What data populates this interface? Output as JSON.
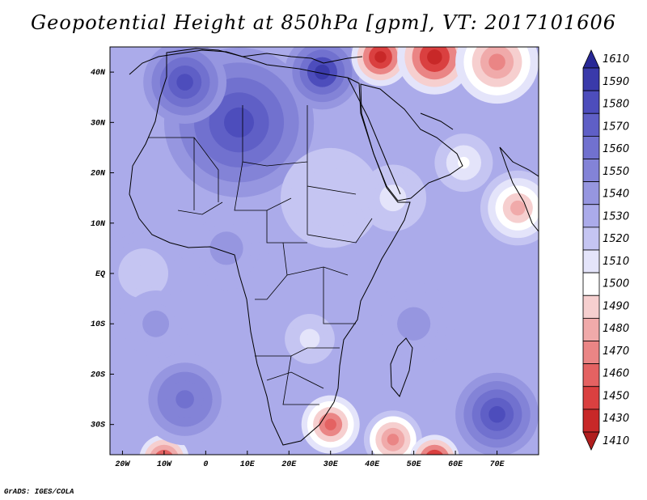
{
  "title": "Geopotential Height at 850hPa [gpm], VT: 2017101606",
  "credit": "GrADS: IGES/COLA",
  "map": {
    "lon_range": [
      -23,
      80
    ],
    "lat_range": [
      -36,
      45
    ],
    "lon_ticks": [
      {
        "lon": -20,
        "label": "20W"
      },
      {
        "lon": -10,
        "label": "10W"
      },
      {
        "lon": 0,
        "label": "0"
      },
      {
        "lon": 10,
        "label": "10E"
      },
      {
        "lon": 20,
        "label": "20E"
      },
      {
        "lon": 30,
        "label": "30E"
      },
      {
        "lon": 40,
        "label": "40E"
      },
      {
        "lon": 50,
        "label": "50E"
      },
      {
        "lon": 60,
        "label": "60E"
      },
      {
        "lon": 70,
        "label": "70E"
      }
    ],
    "lat_ticks": [
      {
        "lat": 40,
        "label": "40N"
      },
      {
        "lat": 30,
        "label": "30N"
      },
      {
        "lat": 20,
        "label": "20N"
      },
      {
        "lat": 10,
        "label": "10N"
      },
      {
        "lat": 0,
        "label": "EQ"
      },
      {
        "lat": -10,
        "label": "10S"
      },
      {
        "lat": -20,
        "label": "20S"
      },
      {
        "lat": -30,
        "label": "30S"
      }
    ],
    "field": {
      "background_value": 1532,
      "features": [
        {
          "lon": 8,
          "lat": 30,
          "value": 1585,
          "r": 18
        },
        {
          "lon": 28,
          "lat": 40,
          "value": 1592,
          "r": 9
        },
        {
          "lon": -5,
          "lat": 38,
          "value": 1582,
          "r": 10
        },
        {
          "lon": 42,
          "lat": 43,
          "value": 1435,
          "r": 7
        },
        {
          "lon": 55,
          "lat": 43,
          "value": 1430,
          "r": 9
        },
        {
          "lon": 70,
          "lat": 42,
          "value": 1470,
          "r": 10
        },
        {
          "lon": 75,
          "lat": 13,
          "value": 1480,
          "r": 9
        },
        {
          "lon": 62,
          "lat": 22,
          "value": 1505,
          "r": 7
        },
        {
          "lon": 30,
          "lat": 15,
          "value": 1520,
          "r": 12
        },
        {
          "lon": 45,
          "lat": 15,
          "value": 1515,
          "r": 8
        },
        {
          "lon": 5,
          "lat": 5,
          "value": 1545,
          "r": 10
        },
        {
          "lon": -15,
          "lat": 0,
          "value": 1528,
          "r": 10
        },
        {
          "lon": 25,
          "lat": -13,
          "value": 1512,
          "r": 6
        },
        {
          "lon": 30,
          "lat": -30,
          "value": 1465,
          "r": 7
        },
        {
          "lon": 45,
          "lat": -33,
          "value": 1475,
          "r": 7
        },
        {
          "lon": 55,
          "lat": -37,
          "value": 1440,
          "r": 6
        },
        {
          "lon": -10,
          "lat": -37,
          "value": 1450,
          "r": 6
        },
        {
          "lon": 70,
          "lat": -28,
          "value": 1585,
          "r": 10
        },
        {
          "lon": -5,
          "lat": -25,
          "value": 1565,
          "r": 11
        },
        {
          "lon": -12,
          "lat": -10,
          "value": 1545,
          "r": 8
        },
        {
          "lon": 50,
          "lat": -10,
          "value": 1545,
          "r": 10
        }
      ]
    }
  },
  "colorbar": {
    "levels": [
      "1610",
      "1590",
      "1580",
      "1570",
      "1560",
      "1550",
      "1540",
      "1530",
      "1520",
      "1510",
      "1500",
      "1490",
      "1480",
      "1470",
      "1460",
      "1450",
      "1430",
      "1410"
    ],
    "colors": [
      "#282896",
      "#3a3aaa",
      "#4d4dbc",
      "#5f5fc6",
      "#7171cf",
      "#8383d7",
      "#9696e0",
      "#ababea",
      "#c5c5f2",
      "#e4e4fa",
      "#ffffff",
      "#f6cfcf",
      "#f0aaaa",
      "#ea8585",
      "#e46262",
      "#da4040",
      "#c82828",
      "#b01e1e"
    ]
  }
}
